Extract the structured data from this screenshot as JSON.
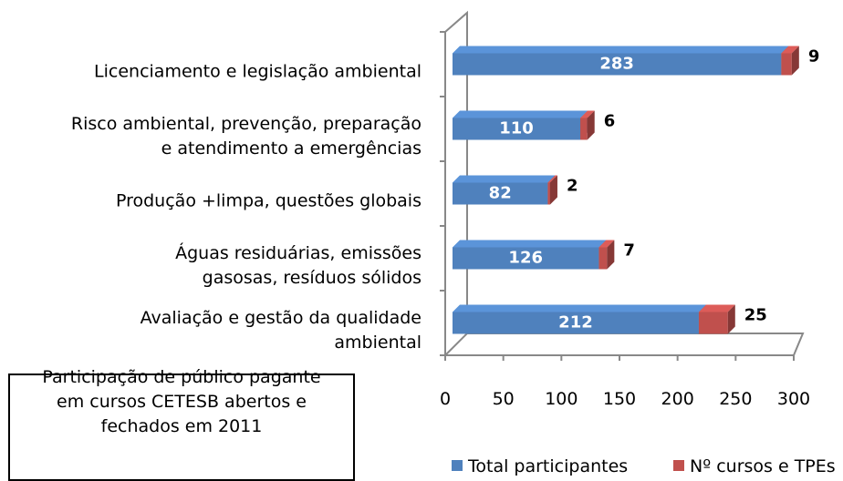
{
  "chart_data": {
    "type": "bar",
    "title": "Participação de público pagante\nem cursos CETESB abertos e\nfechados em 2011",
    "categories": [
      "Licenciamento e legislação ambiental",
      "Risco ambiental, prevenção, preparação\ne atendimento a emergências",
      "Produção +limpa, questões globais",
      "Águas residuárias, emissões\ngasosas, resíduos sólidos",
      "Avaliação e gestão da qualidade\nambiental"
    ],
    "series": [
      {
        "name": "Total participantes",
        "color": "#4f81bd",
        "values": [
          283,
          110,
          82,
          126,
          212
        ]
      },
      {
        "name": "Nº cursos e TPEs",
        "color": "#c0504d",
        "values": [
          9,
          6,
          2,
          7,
          25
        ]
      }
    ],
    "xlim": [
      0,
      300
    ],
    "xticks": [
      0,
      50,
      100,
      150,
      200,
      250,
      300
    ],
    "stacked": true,
    "legend": "bottom"
  }
}
